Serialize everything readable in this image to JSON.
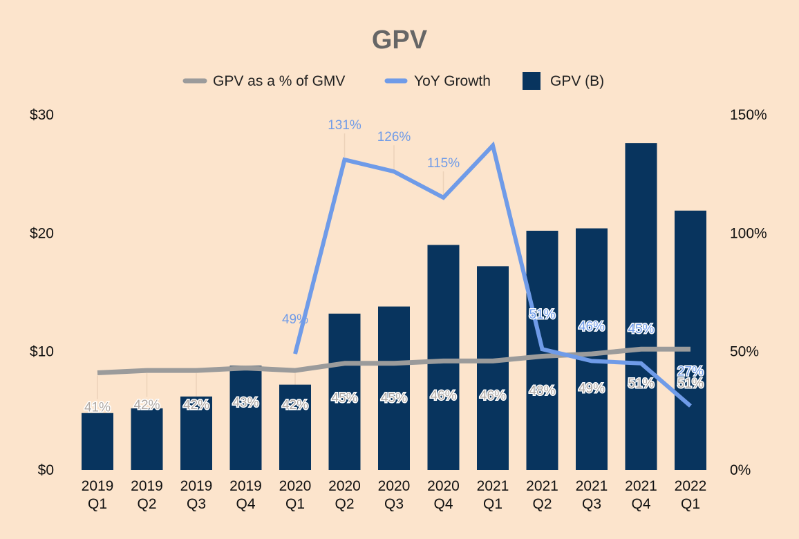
{
  "chart_data": {
    "type": "bar",
    "title": "GPV",
    "categories": [
      [
        "2019",
        "Q1"
      ],
      [
        "2019",
        "Q2"
      ],
      [
        "2019",
        "Q3"
      ],
      [
        "2019",
        "Q4"
      ],
      [
        "2020",
        "Q1"
      ],
      [
        "2020",
        "Q2"
      ],
      [
        "2020",
        "Q3"
      ],
      [
        "2020",
        "Q4"
      ],
      [
        "2021",
        "Q1"
      ],
      [
        "2021",
        "Q2"
      ],
      [
        "2021",
        "Q3"
      ],
      [
        "2021",
        "Q4"
      ],
      [
        "2022",
        "Q1"
      ]
    ],
    "left_axis": {
      "ticks": [
        "$0",
        "$10",
        "$20",
        "$30"
      ],
      "range": [
        0,
        30
      ]
    },
    "right_axis": {
      "ticks": [
        "0%",
        "50%",
        "100%",
        "150%"
      ],
      "range": [
        0,
        150
      ]
    },
    "legend": [
      "GPV as a % of GMV",
      "YoY Growth",
      "GPV (B)"
    ],
    "series": [
      {
        "name": "GPV (B)",
        "kind": "bar",
        "axis": "left",
        "color": "#08345e",
        "values": [
          4.8,
          5.2,
          6.2,
          8.8,
          7.2,
          13.2,
          13.8,
          19.0,
          17.2,
          20.2,
          20.4,
          27.6,
          21.9
        ]
      },
      {
        "name": "GPV as a % of GMV",
        "kind": "line",
        "axis": "right",
        "color": "#9b9b9b",
        "values": [
          41,
          42,
          42,
          43,
          42,
          45,
          45,
          46,
          46,
          48,
          49,
          51,
          51
        ],
        "labels": [
          "41%",
          "42%",
          "42%",
          "43%",
          "42%",
          "45%",
          "45%",
          "46%",
          "46%",
          "48%",
          "49%",
          "51%",
          "51%"
        ]
      },
      {
        "name": "YoY Growth",
        "kind": "line",
        "axis": "right",
        "color": "#6f9be8",
        "values": [
          null,
          null,
          null,
          null,
          49,
          131,
          126,
          115,
          137,
          51,
          46,
          45,
          27
        ],
        "labels": [
          null,
          null,
          null,
          null,
          "49%",
          "131%",
          "126%",
          "115%",
          null,
          "51%",
          "46%",
          "45%",
          "27%"
        ]
      }
    ]
  }
}
